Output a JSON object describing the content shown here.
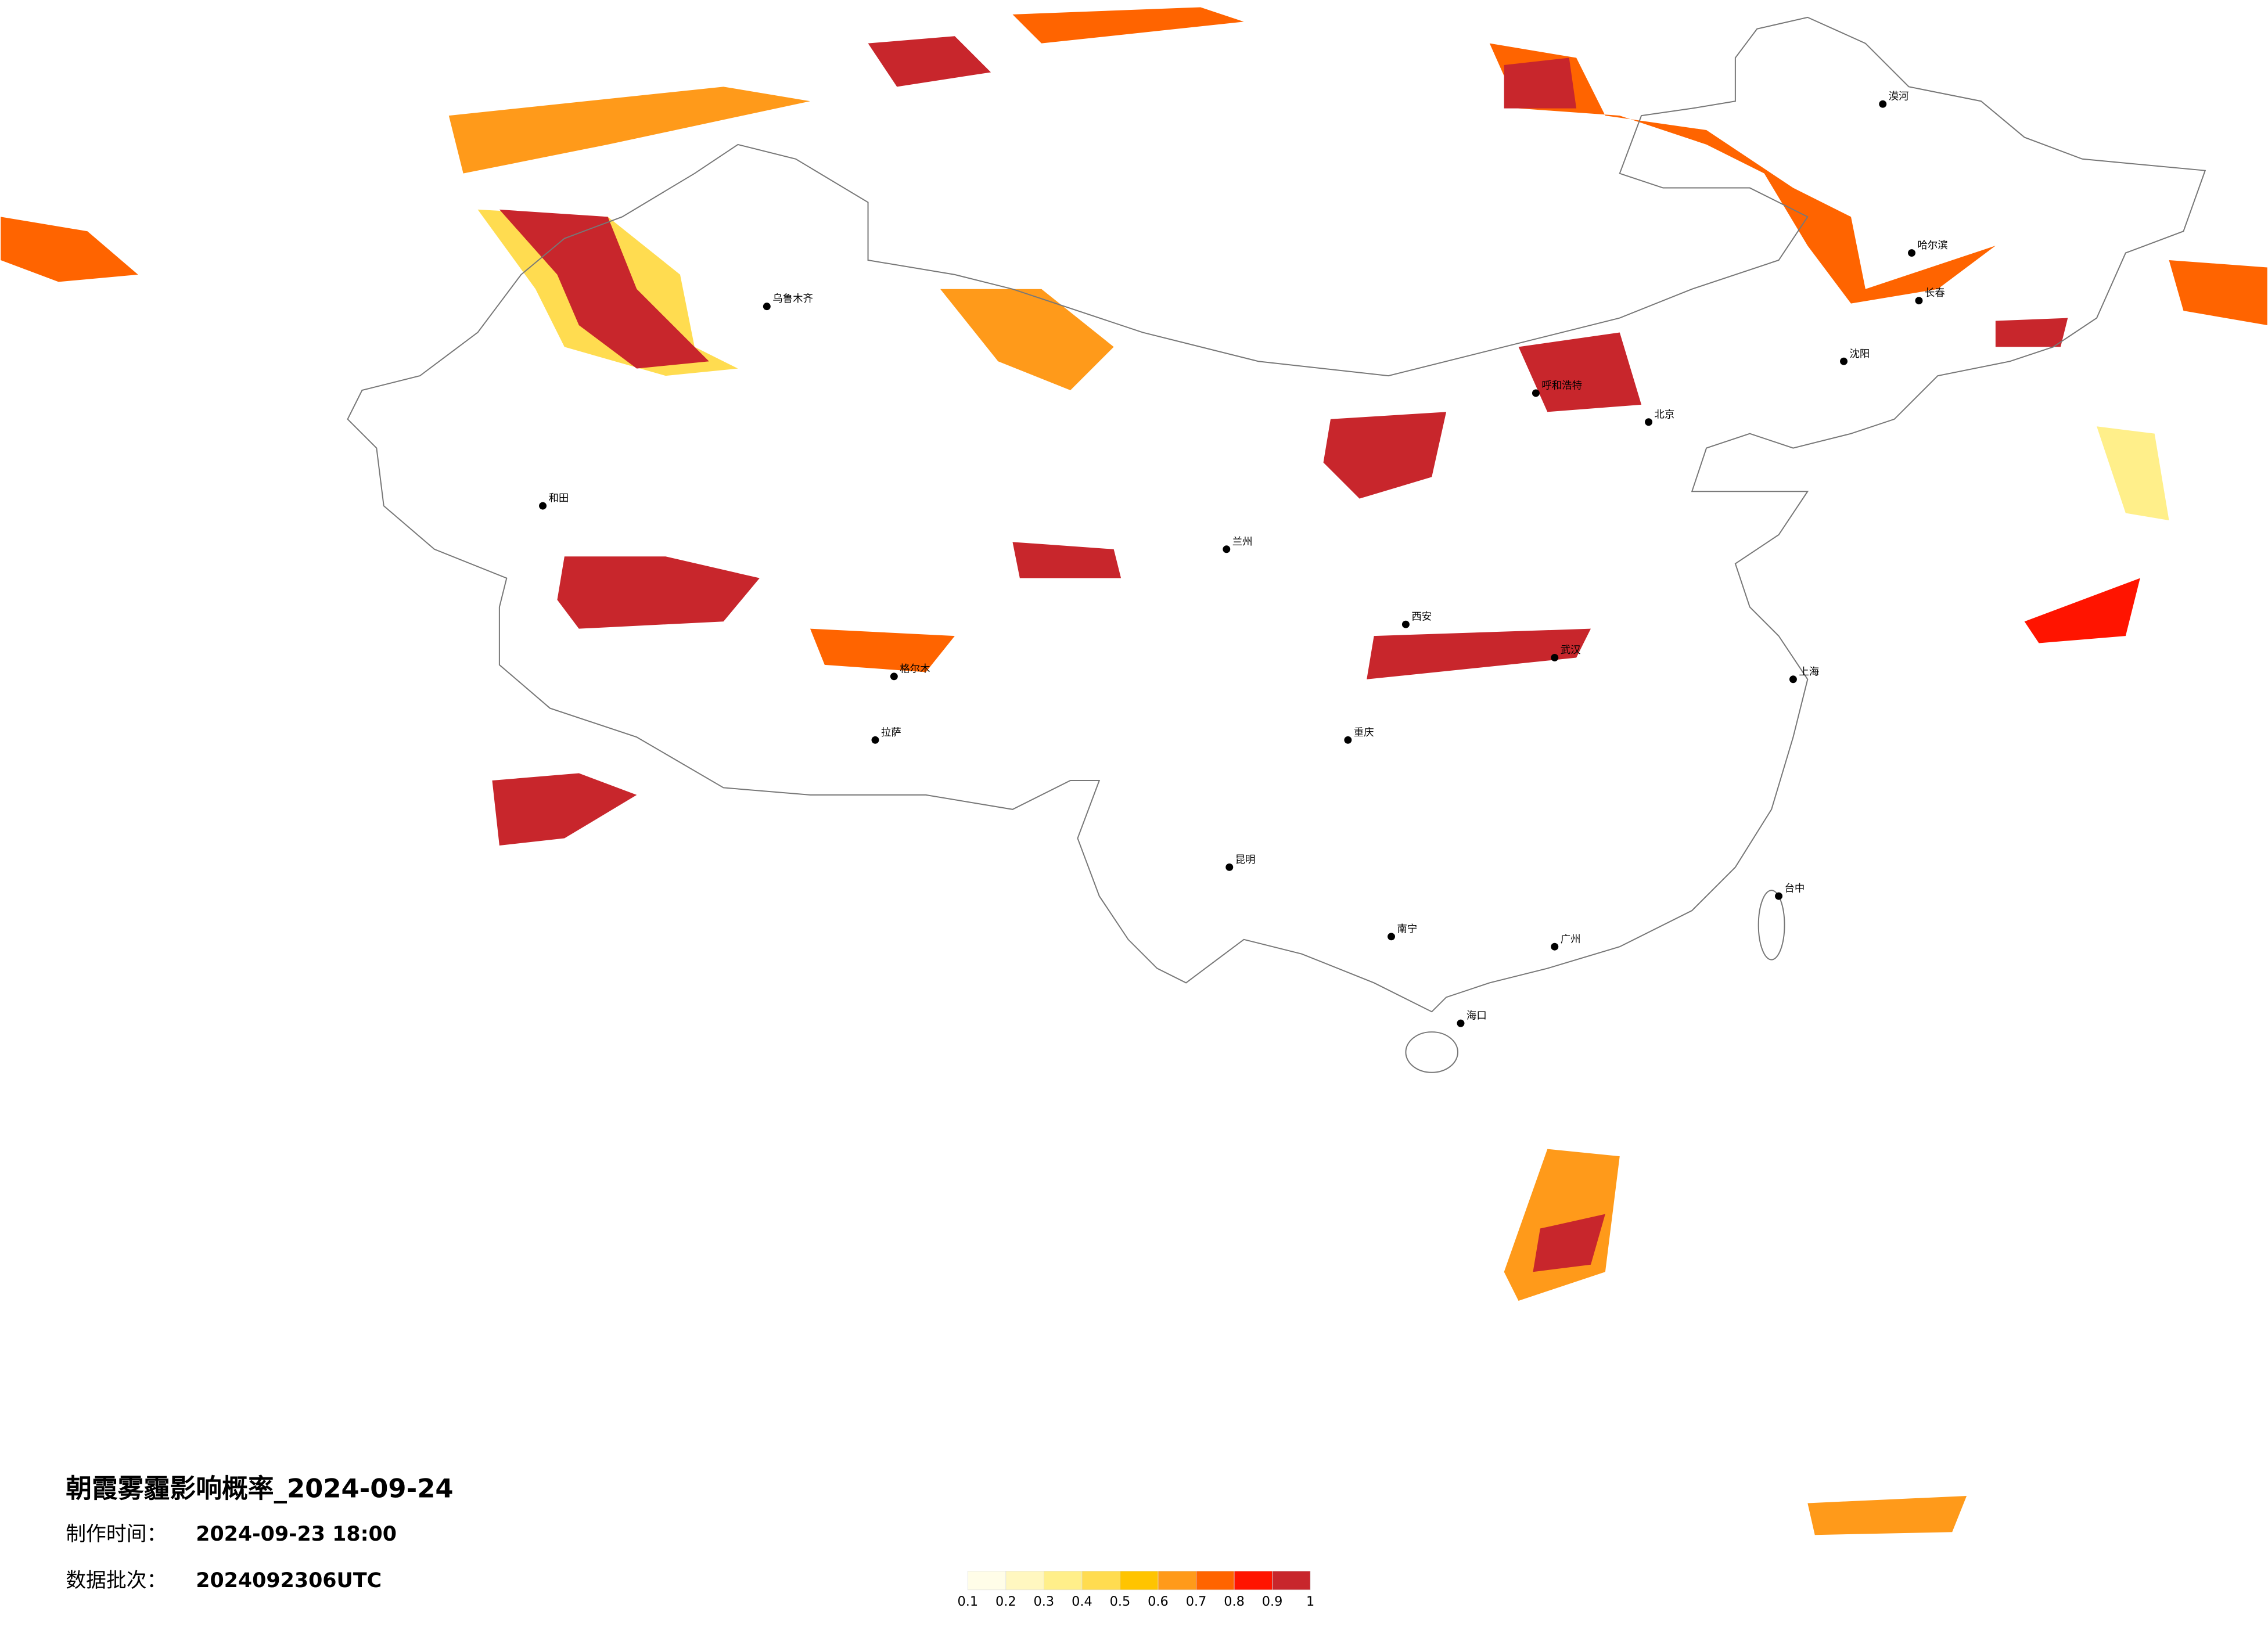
{
  "title": "朝霞雾霾影响概率_2024-09-24",
  "info": [
    {
      "label": "制作时间：",
      "value": "2024-09-23 18:00"
    },
    {
      "label": "数据批次：",
      "value": "2024092306UTC"
    }
  ],
  "legend": {
    "ticks": [
      0.1,
      0.2,
      0.3,
      0.4,
      0.5,
      0.6,
      0.7,
      0.8,
      0.9,
      1
    ],
    "colors": [
      "#fffde8",
      "#fff7c0",
      "#ffef8a",
      "#ffdc50",
      "#ffc400",
      "#ff9a1a",
      "#ff6400",
      "#ff1400",
      "#c8262c"
    ]
  },
  "cities": [
    "北京",
    "上海",
    "广州",
    "重庆",
    "武汉",
    "西安",
    "拉萨",
    "乌鲁木齐",
    "哈尔滨",
    "长春",
    "沈阳",
    "呼和浩特",
    "兰州",
    "昆明",
    "南宁",
    "海口",
    "台中",
    "和田",
    "漠河",
    "格尔木"
  ]
}
